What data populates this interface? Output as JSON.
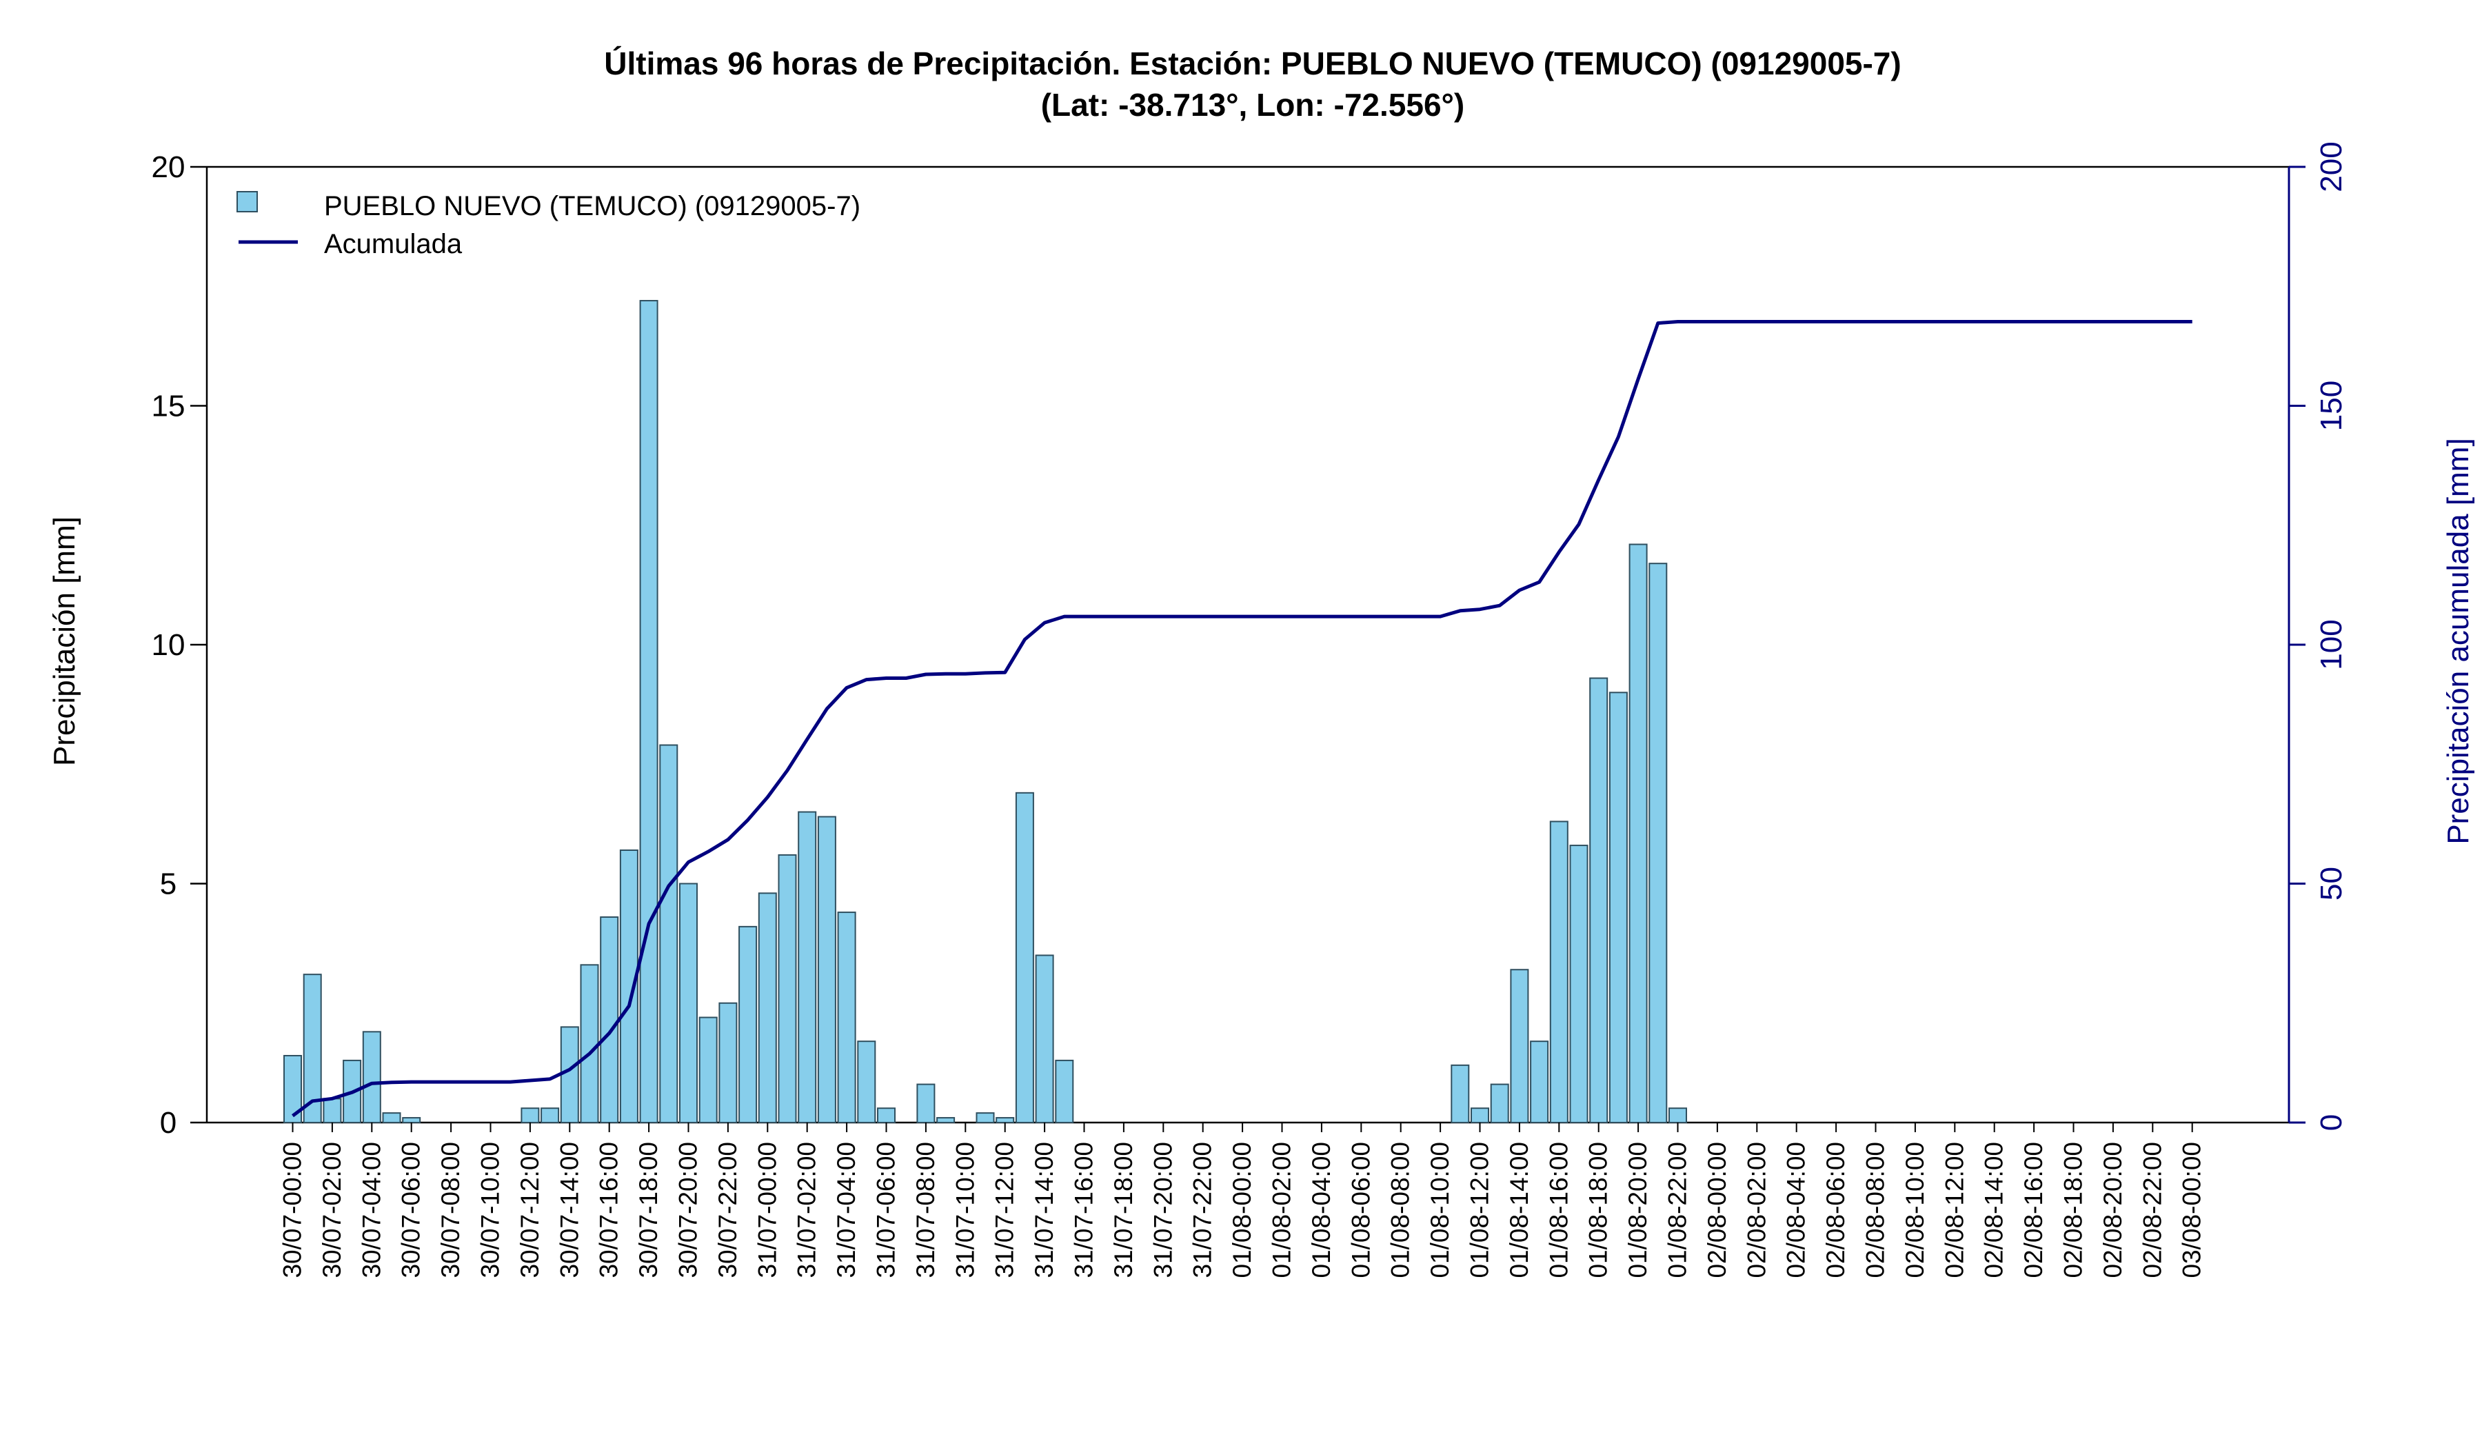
{
  "chart_data": {
    "type": "bar",
    "title_line1": "Últimas 96 horas de Precipitación. Estación: PUEBLO NUEVO (TEMUCO) (09129005-7)",
    "title_line2": "(Lat: -38.713°, Lon: -72.556°)",
    "ylabel": "Precipitación [mm]",
    "ylabel_right": "Precipitación acumulada [mm]",
    "ylim": [
      0,
      20
    ],
    "ylim_right": [
      0,
      200
    ],
    "yticks": [
      0,
      5,
      10,
      15,
      20
    ],
    "yticks_right": [
      0,
      50,
      100,
      150,
      200
    ],
    "grid": false,
    "legend_position": "top-left",
    "colors": {
      "bar_fill": "#87ceeb",
      "bar_stroke": "#2f4f5f",
      "line": "#00007f",
      "right_axis": "#00007f"
    },
    "x_tick_labels": [
      "30/07-00:00",
      "30/07-02:00",
      "30/07-04:00",
      "30/07-06:00",
      "30/07-08:00",
      "30/07-10:00",
      "30/07-12:00",
      "30/07-14:00",
      "30/07-16:00",
      "30/07-18:00",
      "30/07-20:00",
      "30/07-22:00",
      "31/07-00:00",
      "31/07-02:00",
      "31/07-04:00",
      "31/07-06:00",
      "31/07-08:00",
      "31/07-10:00",
      "31/07-12:00",
      "31/07-14:00",
      "31/07-16:00",
      "31/07-18:00",
      "31/07-20:00",
      "31/07-22:00",
      "01/08-00:00",
      "01/08-02:00",
      "01/08-04:00",
      "01/08-06:00",
      "01/08-08:00",
      "01/08-10:00",
      "01/08-12:00",
      "01/08-14:00",
      "01/08-16:00",
      "01/08-18:00",
      "01/08-20:00",
      "01/08-22:00",
      "02/08-00:00",
      "02/08-02:00",
      "02/08-04:00",
      "02/08-06:00",
      "02/08-08:00",
      "02/08-10:00",
      "02/08-12:00",
      "02/08-14:00",
      "02/08-16:00",
      "02/08-18:00",
      "02/08-20:00",
      "02/08-22:00",
      "03/08-00:00"
    ],
    "series": [
      {
        "name": "PUEBLO NUEVO (TEMUCO) (09129005-7)",
        "type": "bar",
        "axis": "left",
        "values": [
          1.4,
          3.1,
          0.5,
          1.3,
          1.9,
          0.2,
          0.1,
          0,
          0,
          0,
          0,
          0,
          0.3,
          0.3,
          2.0,
          3.3,
          4.3,
          5.7,
          17.2,
          7.9,
          5.0,
          2.2,
          2.5,
          4.1,
          4.8,
          5.6,
          6.5,
          6.4,
          4.4,
          1.7,
          0.3,
          0,
          0.8,
          0.1,
          0,
          0.2,
          0.1,
          6.9,
          3.5,
          1.3,
          0,
          0,
          0,
          0,
          0,
          0,
          0,
          0,
          0,
          0,
          0,
          0,
          0,
          0,
          0,
          0,
          0,
          0,
          0,
          1.2,
          0.3,
          0.8,
          3.2,
          1.7,
          6.3,
          5.8,
          9.3,
          9.0,
          12.1,
          11.7,
          0.3,
          0,
          0,
          0,
          0,
          0,
          0,
          0,
          0,
          0,
          0,
          0,
          0,
          0,
          0,
          0,
          0,
          0,
          0,
          0,
          0,
          0,
          0,
          0,
          0,
          0,
          0
        ]
      },
      {
        "name": "Acumulada",
        "type": "line",
        "axis": "right",
        "values": [
          1.4,
          4.5,
          5.0,
          6.3,
          8.2,
          8.4,
          8.5,
          8.5,
          8.5,
          8.5,
          8.5,
          8.5,
          8.8,
          9.1,
          11.1,
          14.4,
          18.7,
          24.4,
          41.6,
          49.5,
          54.5,
          56.7,
          59.2,
          63.3,
          68.1,
          73.7,
          80.2,
          86.6,
          91.0,
          92.7,
          93.0,
          93.0,
          93.8,
          93.9,
          93.9,
          94.1,
          94.2,
          101.1,
          104.6,
          105.9,
          105.9,
          105.9,
          105.9,
          105.9,
          105.9,
          105.9,
          105.9,
          105.9,
          105.9,
          105.9,
          105.9,
          105.9,
          105.9,
          105.9,
          105.9,
          105.9,
          105.9,
          105.9,
          105.9,
          107.1,
          107.4,
          108.2,
          111.4,
          113.1,
          119.4,
          125.2,
          134.5,
          143.5,
          155.6,
          167.3,
          167.6,
          167.6,
          167.6,
          167.6,
          167.6,
          167.6,
          167.6,
          167.6,
          167.6,
          167.6,
          167.6,
          167.6,
          167.6,
          167.6,
          167.6,
          167.6,
          167.6,
          167.6,
          167.6,
          167.6,
          167.6,
          167.6,
          167.6,
          167.6,
          167.6,
          167.6,
          167.6
        ]
      }
    ]
  }
}
